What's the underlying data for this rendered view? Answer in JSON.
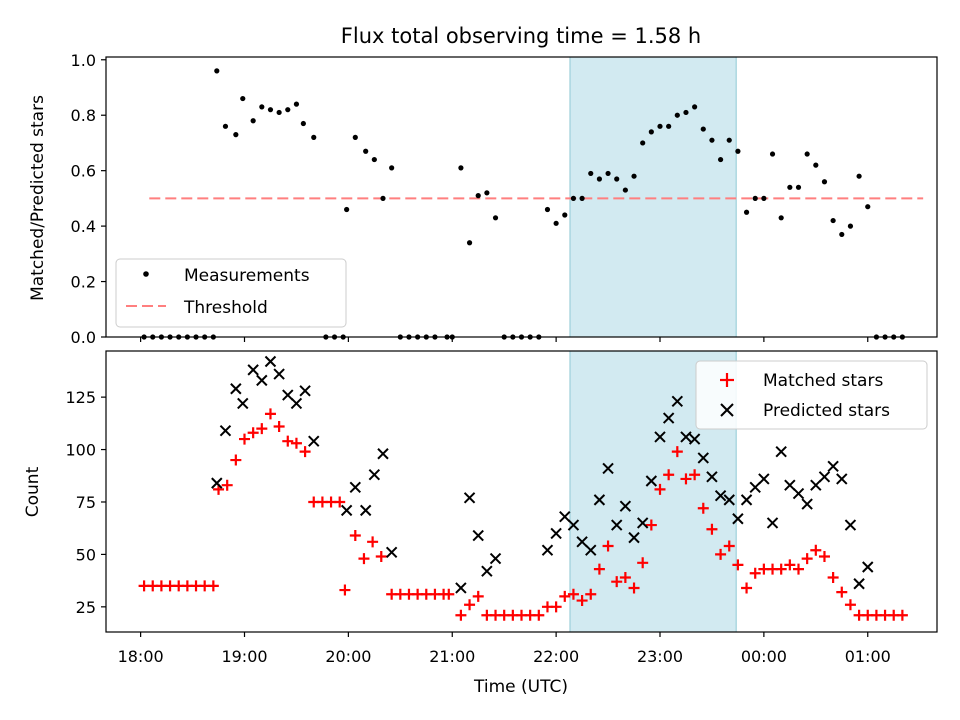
{
  "title": "Flux total observing time = 1.58 h",
  "xlabel": "Time (UTC)",
  "xticks": [
    {
      "t": 18.0,
      "label": "18:00"
    },
    {
      "t": 19.0,
      "label": "19:00"
    },
    {
      "t": 20.0,
      "label": "20:00"
    },
    {
      "t": 21.0,
      "label": "21:00"
    },
    {
      "t": 22.0,
      "label": "22:00"
    },
    {
      "t": 23.0,
      "label": "23:00"
    },
    {
      "t": 24.0,
      "label": "00:00"
    },
    {
      "t": 25.0,
      "label": "01:00"
    }
  ],
  "colors": {
    "measurement": "#000000",
    "threshold": "#ff7f7f",
    "matched": "#ff0000",
    "predicted": "#000000",
    "shade": "#add8e6"
  },
  "chart_data": [
    {
      "type": "scatter",
      "ylabel": "Matched/Predicted stars",
      "xlim": [
        "17:40",
        "25:40"
      ],
      "ylim": [
        0,
        1.01
      ],
      "yticks": [
        "0.0",
        "0.2",
        "0.4",
        "0.6",
        "0.8",
        "1.0"
      ],
      "shaded_region": [
        "22:08",
        "23:44"
      ],
      "legend": {
        "position": "lower-left",
        "entries": [
          "Measurements",
          "Threshold"
        ]
      },
      "threshold": {
        "name": "Threshold",
        "value": 0.5,
        "x_range": [
          "18:05",
          "25:32"
        ]
      },
      "series": [
        {
          "name": "Measurements",
          "marker": "dot",
          "points": [
            [
              "18:02",
              0
            ],
            [
              "18:07",
              0
            ],
            [
              "18:12",
              0
            ],
            [
              "18:17",
              0
            ],
            [
              "18:22",
              0
            ],
            [
              "18:27",
              0
            ],
            [
              "18:32",
              0
            ],
            [
              "18:37",
              0
            ],
            [
              "18:42",
              0
            ],
            [
              "18:44",
              0.96
            ],
            [
              "18:49",
              0.76
            ],
            [
              "18:55",
              0.73
            ],
            [
              "18:59",
              0.86
            ],
            [
              "19:05",
              0.78
            ],
            [
              "19:10",
              0.83
            ],
            [
              "19:15",
              0.82
            ],
            [
              "19:20",
              0.81
            ],
            [
              "19:25",
              0.82
            ],
            [
              "19:30",
              0.84
            ],
            [
              "19:34",
              0.77
            ],
            [
              "19:40",
              0.72
            ],
            [
              "19:47",
              0
            ],
            [
              "19:52",
              0
            ],
            [
              "19:57",
              0
            ],
            [
              "19:59",
              0.46
            ],
            [
              "20:04",
              0.72
            ],
            [
              "20:10",
              0.67
            ],
            [
              "20:15",
              0.64
            ],
            [
              "20:20",
              0.5
            ],
            [
              "20:25",
              0.61
            ],
            [
              "20:30",
              0
            ],
            [
              "20:35",
              0
            ],
            [
              "20:40",
              0
            ],
            [
              "20:45",
              0
            ],
            [
              "20:50",
              0
            ],
            [
              "20:57",
              0
            ],
            [
              "21:00",
              0
            ],
            [
              "21:05",
              0.61
            ],
            [
              "21:10",
              0.34
            ],
            [
              "21:15",
              0.51
            ],
            [
              "21:20",
              0.52
            ],
            [
              "21:25",
              0.43
            ],
            [
              "21:30",
              0
            ],
            [
              "21:35",
              0
            ],
            [
              "21:40",
              0
            ],
            [
              "21:45",
              0
            ],
            [
              "21:50",
              0
            ],
            [
              "21:55",
              0.46
            ],
            [
              "22:00",
              0.41
            ],
            [
              "22:05",
              0.44
            ],
            [
              "22:10",
              0.5
            ],
            [
              "22:15",
              0.5
            ],
            [
              "22:20",
              0.59
            ],
            [
              "22:25",
              0.57
            ],
            [
              "22:30",
              0.59
            ],
            [
              "22:35",
              0.57
            ],
            [
              "22:40",
              0.53
            ],
            [
              "22:45",
              0.58
            ],
            [
              "22:50",
              0.7
            ],
            [
              "22:55",
              0.74
            ],
            [
              "23:00",
              0.76
            ],
            [
              "23:05",
              0.76
            ],
            [
              "23:10",
              0.8
            ],
            [
              "23:15",
              0.81
            ],
            [
              "23:20",
              0.83
            ],
            [
              "23:25",
              0.75
            ],
            [
              "23:30",
              0.71
            ],
            [
              "23:35",
              0.64
            ],
            [
              "23:40",
              0.71
            ],
            [
              "23:45",
              0.67
            ],
            [
              "23:50",
              0.45
            ],
            [
              "23:55",
              0.5
            ],
            [
              "24:00",
              0.5
            ],
            [
              "24:05",
              0.66
            ],
            [
              "24:10",
              0.43
            ],
            [
              "24:15",
              0.54
            ],
            [
              "24:20",
              0.54
            ],
            [
              "24:25",
              0.66
            ],
            [
              "24:30",
              0.62
            ],
            [
              "24:35",
              0.56
            ],
            [
              "24:40",
              0.42
            ],
            [
              "24:45",
              0.37
            ],
            [
              "24:50",
              0.4
            ],
            [
              "24:55",
              0.58
            ],
            [
              "25:00",
              0.47
            ],
            [
              "25:05",
              0
            ],
            [
              "25:10",
              0
            ],
            [
              "25:15",
              0
            ],
            [
              "25:20",
              0
            ]
          ]
        }
      ]
    },
    {
      "type": "scatter",
      "ylabel": "Count",
      "xlim": [
        "17:40",
        "25:40"
      ],
      "ylim": [
        13,
        147
      ],
      "yticks": [
        "25",
        "50",
        "75",
        "100",
        "125"
      ],
      "shaded_region": [
        "22:08",
        "23:44"
      ],
      "legend": {
        "position": "top-right",
        "entries": [
          "Matched stars",
          "Predicted stars"
        ]
      },
      "series": [
        {
          "name": "Matched stars",
          "marker": "plus",
          "points": [
            [
              "18:02",
              35
            ],
            [
              "18:07",
              35
            ],
            [
              "18:12",
              35
            ],
            [
              "18:17",
              35
            ],
            [
              "18:22",
              35
            ],
            [
              "18:27",
              35
            ],
            [
              "18:32",
              35
            ],
            [
              "18:37",
              35
            ],
            [
              "18:42",
              35
            ],
            [
              "18:45",
              81
            ],
            [
              "18:50",
              83
            ],
            [
              "18:55",
              95
            ],
            [
              "19:00",
              105
            ],
            [
              "19:05",
              108
            ],
            [
              "19:10",
              110
            ],
            [
              "19:15",
              117
            ],
            [
              "19:20",
              111
            ],
            [
              "19:25",
              104
            ],
            [
              "19:30",
              103
            ],
            [
              "19:35",
              99
            ],
            [
              "19:40",
              75
            ],
            [
              "19:45",
              75
            ],
            [
              "19:50",
              75
            ],
            [
              "19:55",
              75
            ],
            [
              "19:58",
              33
            ],
            [
              "20:04",
              59
            ],
            [
              "20:09",
              48
            ],
            [
              "20:14",
              56
            ],
            [
              "20:19",
              49
            ],
            [
              "20:25",
              31
            ],
            [
              "20:30",
              31
            ],
            [
              "20:35",
              31
            ],
            [
              "20:40",
              31
            ],
            [
              "20:45",
              31
            ],
            [
              "20:50",
              31
            ],
            [
              "20:55",
              31
            ],
            [
              "20:58",
              31
            ],
            [
              "21:05",
              21
            ],
            [
              "21:10",
              26
            ],
            [
              "21:15",
              30
            ],
            [
              "21:20",
              21
            ],
            [
              "21:25",
              21
            ],
            [
              "21:30",
              21
            ],
            [
              "21:35",
              21
            ],
            [
              "21:40",
              21
            ],
            [
              "21:45",
              21
            ],
            [
              "21:50",
              21
            ],
            [
              "21:55",
              25
            ],
            [
              "22:00",
              25
            ],
            [
              "22:05",
              30
            ],
            [
              "22:10",
              31
            ],
            [
              "22:15",
              28
            ],
            [
              "22:20",
              31
            ],
            [
              "22:25",
              43
            ],
            [
              "22:30",
              54
            ],
            [
              "22:35",
              37
            ],
            [
              "22:40",
              39
            ],
            [
              "22:45",
              34
            ],
            [
              "22:50",
              46
            ],
            [
              "22:55",
              64
            ],
            [
              "23:00",
              81
            ],
            [
              "23:05",
              88
            ],
            [
              "23:10",
              99
            ],
            [
              "23:15",
              86
            ],
            [
              "23:20",
              88
            ],
            [
              "23:25",
              72
            ],
            [
              "23:30",
              62
            ],
            [
              "23:35",
              50
            ],
            [
              "23:40",
              54
            ],
            [
              "23:45",
              45
            ],
            [
              "23:50",
              34
            ],
            [
              "23:55",
              41
            ],
            [
              "24:00",
              43
            ],
            [
              "24:05",
              43
            ],
            [
              "24:10",
              43
            ],
            [
              "24:15",
              45
            ],
            [
              "24:20",
              43
            ],
            [
              "24:25",
              48
            ],
            [
              "24:30",
              52
            ],
            [
              "24:35",
              49
            ],
            [
              "24:40",
              39
            ],
            [
              "24:45",
              32
            ],
            [
              "24:50",
              26
            ],
            [
              "24:55",
              21
            ],
            [
              "25:00",
              21
            ],
            [
              "25:05",
              21
            ],
            [
              "25:10",
              21
            ],
            [
              "25:15",
              21
            ],
            [
              "25:20",
              21
            ]
          ]
        },
        {
          "name": "Predicted stars",
          "marker": "x",
          "points": [
            [
              "18:44",
              84
            ],
            [
              "18:49",
              109
            ],
            [
              "18:55",
              129
            ],
            [
              "18:59",
              122
            ],
            [
              "19:05",
              138
            ],
            [
              "19:10",
              133
            ],
            [
              "19:15",
              142
            ],
            [
              "19:20",
              136
            ],
            [
              "19:25",
              126
            ],
            [
              "19:30",
              122
            ],
            [
              "19:35",
              128
            ],
            [
              "19:40",
              104
            ],
            [
              "19:59",
              71
            ],
            [
              "20:04",
              82
            ],
            [
              "20:10",
              71
            ],
            [
              "20:15",
              88
            ],
            [
              "20:20",
              98
            ],
            [
              "20:25",
              51
            ],
            [
              "21:05",
              34
            ],
            [
              "21:10",
              77
            ],
            [
              "21:15",
              59
            ],
            [
              "21:20",
              42
            ],
            [
              "21:25",
              48
            ],
            [
              "21:55",
              52
            ],
            [
              "22:00",
              60
            ],
            [
              "22:05",
              68
            ],
            [
              "22:10",
              64
            ],
            [
              "22:15",
              56
            ],
            [
              "22:20",
              52
            ],
            [
              "22:25",
              76
            ],
            [
              "22:30",
              91
            ],
            [
              "22:35",
              64
            ],
            [
              "22:40",
              73
            ],
            [
              "22:45",
              58
            ],
            [
              "22:50",
              65
            ],
            [
              "22:55",
              85
            ],
            [
              "23:00",
              106
            ],
            [
              "23:05",
              115
            ],
            [
              "23:10",
              123
            ],
            [
              "23:15",
              106
            ],
            [
              "23:20",
              105
            ],
            [
              "23:25",
              96
            ],
            [
              "23:30",
              87
            ],
            [
              "23:35",
              78
            ],
            [
              "23:40",
              76
            ],
            [
              "23:45",
              67
            ],
            [
              "23:50",
              76
            ],
            [
              "23:55",
              82
            ],
            [
              "24:00",
              86
            ],
            [
              "24:05",
              65
            ],
            [
              "24:10",
              99
            ],
            [
              "24:15",
              83
            ],
            [
              "24:20",
              79
            ],
            [
              "24:25",
              74
            ],
            [
              "24:30",
              83
            ],
            [
              "24:35",
              87
            ],
            [
              "24:40",
              92
            ],
            [
              "24:45",
              86
            ],
            [
              "24:50",
              64
            ],
            [
              "24:55",
              36
            ],
            [
              "25:00",
              44
            ]
          ]
        }
      ]
    }
  ]
}
